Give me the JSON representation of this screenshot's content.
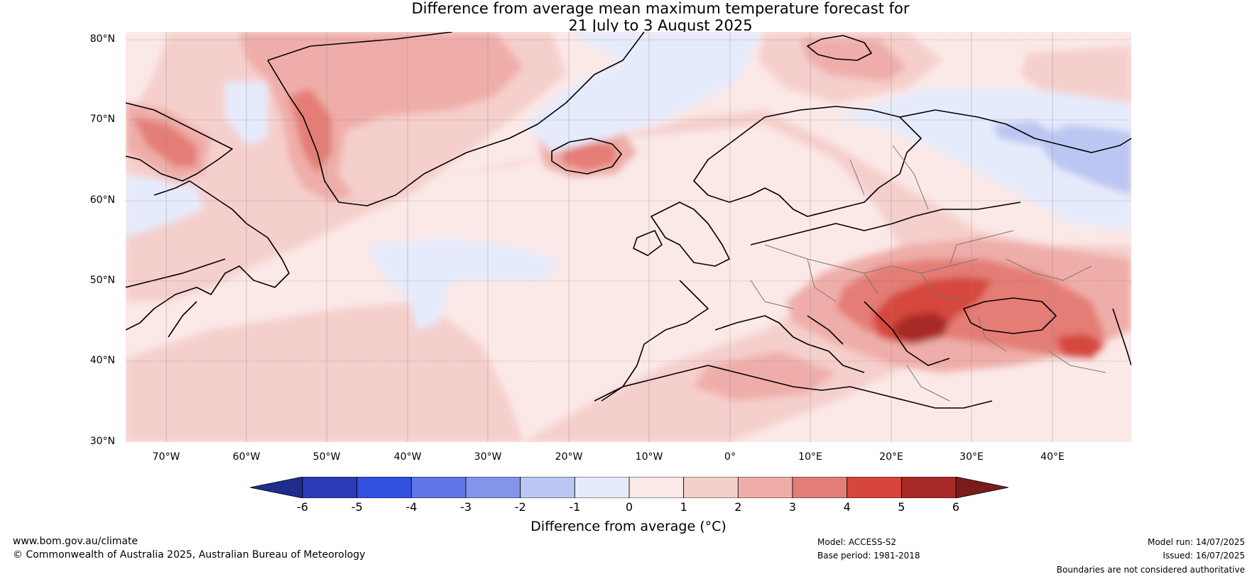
{
  "title_line1": "Difference from average mean maximum temperature forecast for",
  "title_line2": "21 July to 3 August 2025",
  "lat_labels": [
    "80°N",
    "70°N",
    "60°N",
    "50°N",
    "40°N",
    "30°N"
  ],
  "lon_labels": [
    "70°W",
    "60°W",
    "50°W",
    "40°W",
    "30°W",
    "20°W",
    "10°W",
    "0°",
    "10°E",
    "20°E",
    "30°E",
    "40°E"
  ],
  "colorbar": {
    "title": "Difference from average (°C)",
    "ticks": [
      "-6",
      "-5",
      "-4",
      "-3",
      "-2",
      "-1",
      "0",
      "1",
      "2",
      "3",
      "4",
      "5",
      "6"
    ],
    "colors": [
      "#1e2d8c",
      "#2a3bb7",
      "#3150e0",
      "#5f77e6",
      "#8494ea",
      "#bcc6f2",
      "#e6ebfb",
      "#fbe9e7",
      "#f5cfcc",
      "#efada9",
      "#e47d75",
      "#d6463d",
      "#a82a26",
      "#7a1d1a"
    ]
  },
  "footer": {
    "website": "www.bom.gov.au/climate",
    "copyright": "© Commonwealth of Australia 2025, Australian Bureau of Meteorology",
    "model": "Model: ACCESS-S2",
    "base_period": "Base period: 1981-2018",
    "model_run": "Model run: 14/07/2025",
    "issued": "Issued: 16/07/2025",
    "disclaimer": "Boundaries are not considered authoritative"
  }
}
